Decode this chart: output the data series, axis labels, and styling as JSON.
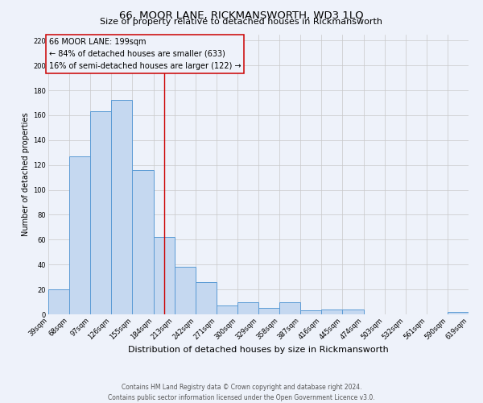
{
  "title": "66, MOOR LANE, RICKMANSWORTH, WD3 1LQ",
  "subtitle": "Size of property relative to detached houses in Rickmansworth",
  "xlabel": "Distribution of detached houses by size in Rickmansworth",
  "ylabel": "Number of detached properties",
  "bin_edges": [
    39,
    68,
    97,
    126,
    155,
    184,
    213,
    242,
    271,
    300,
    329,
    358,
    387,
    416,
    445,
    474,
    503,
    532,
    561,
    590,
    619
  ],
  "bar_heights": [
    20,
    127,
    163,
    172,
    116,
    62,
    38,
    26,
    7,
    10,
    5,
    10,
    3,
    4,
    4,
    0,
    0,
    0,
    0,
    2
  ],
  "bar_facecolor": "#c5d8f0",
  "bar_edgecolor": "#5b9bd5",
  "bar_linewidth": 0.7,
  "grid_color": "#c8c8c8",
  "background_color": "#eef2fa",
  "red_line_x": 199,
  "red_line_color": "#cc0000",
  "annotation_line1": "66 MOOR LANE: 199sqm",
  "annotation_line2": "← 84% of detached houses are smaller (633)",
  "annotation_line3": "16% of semi-detached houses are larger (122) →",
  "annotation_box_edgecolor": "#cc0000",
  "ylim": [
    0,
    225
  ],
  "yticks": [
    0,
    20,
    40,
    60,
    80,
    100,
    120,
    140,
    160,
    180,
    200,
    220
  ],
  "footer_line1": "Contains HM Land Registry data © Crown copyright and database right 2024.",
  "footer_line2": "Contains public sector information licensed under the Open Government Licence v3.0.",
  "title_fontsize": 9.5,
  "subtitle_fontsize": 8,
  "xlabel_fontsize": 8,
  "ylabel_fontsize": 7,
  "tick_fontsize": 6,
  "footer_fontsize": 5.5,
  "annotation_fontsize": 7
}
